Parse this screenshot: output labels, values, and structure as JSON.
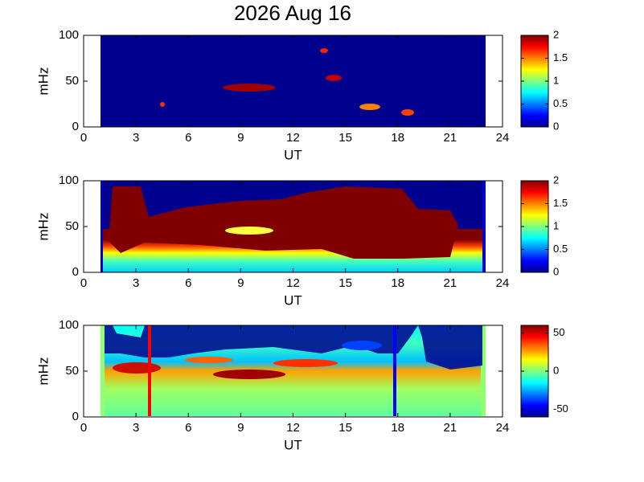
{
  "chart_data": [
    {
      "type": "heatmap",
      "title": "2026 Aug 16",
      "xlabel": "UT",
      "ylabel": "mHz",
      "xlim": [
        0,
        24
      ],
      "xticks": [
        0,
        3,
        6,
        9,
        12,
        15,
        18,
        21,
        24
      ],
      "ylim": [
        0,
        100
      ],
      "yticks": [
        0,
        50,
        100
      ],
      "clim": [
        0,
        2
      ],
      "cticks": [
        0,
        0.5,
        1,
        1.5,
        2
      ],
      "colormap": "jet"
    },
    {
      "type": "heatmap",
      "xlabel": "UT",
      "ylabel": "mHz",
      "xlim": [
        0,
        24
      ],
      "xticks": [
        0,
        3,
        6,
        9,
        12,
        15,
        18,
        21,
        24
      ],
      "ylim": [
        0,
        100
      ],
      "yticks": [
        0,
        50,
        100
      ],
      "clim": [
        0,
        2
      ],
      "cticks": [
        0,
        0.5,
        1,
        1.5,
        2
      ],
      "colormap": "jet"
    },
    {
      "type": "heatmap",
      "xlabel": "UT",
      "ylabel": "mHz",
      "xlim": [
        0,
        24
      ],
      "xticks": [
        0,
        3,
        6,
        9,
        12,
        15,
        18,
        21,
        24
      ],
      "ylim": [
        0,
        100
      ],
      "yticks": [
        0,
        50,
        100
      ],
      "clim": [
        -60,
        60
      ],
      "cticks": [
        -50,
        0,
        50
      ],
      "colormap": "jet"
    }
  ]
}
